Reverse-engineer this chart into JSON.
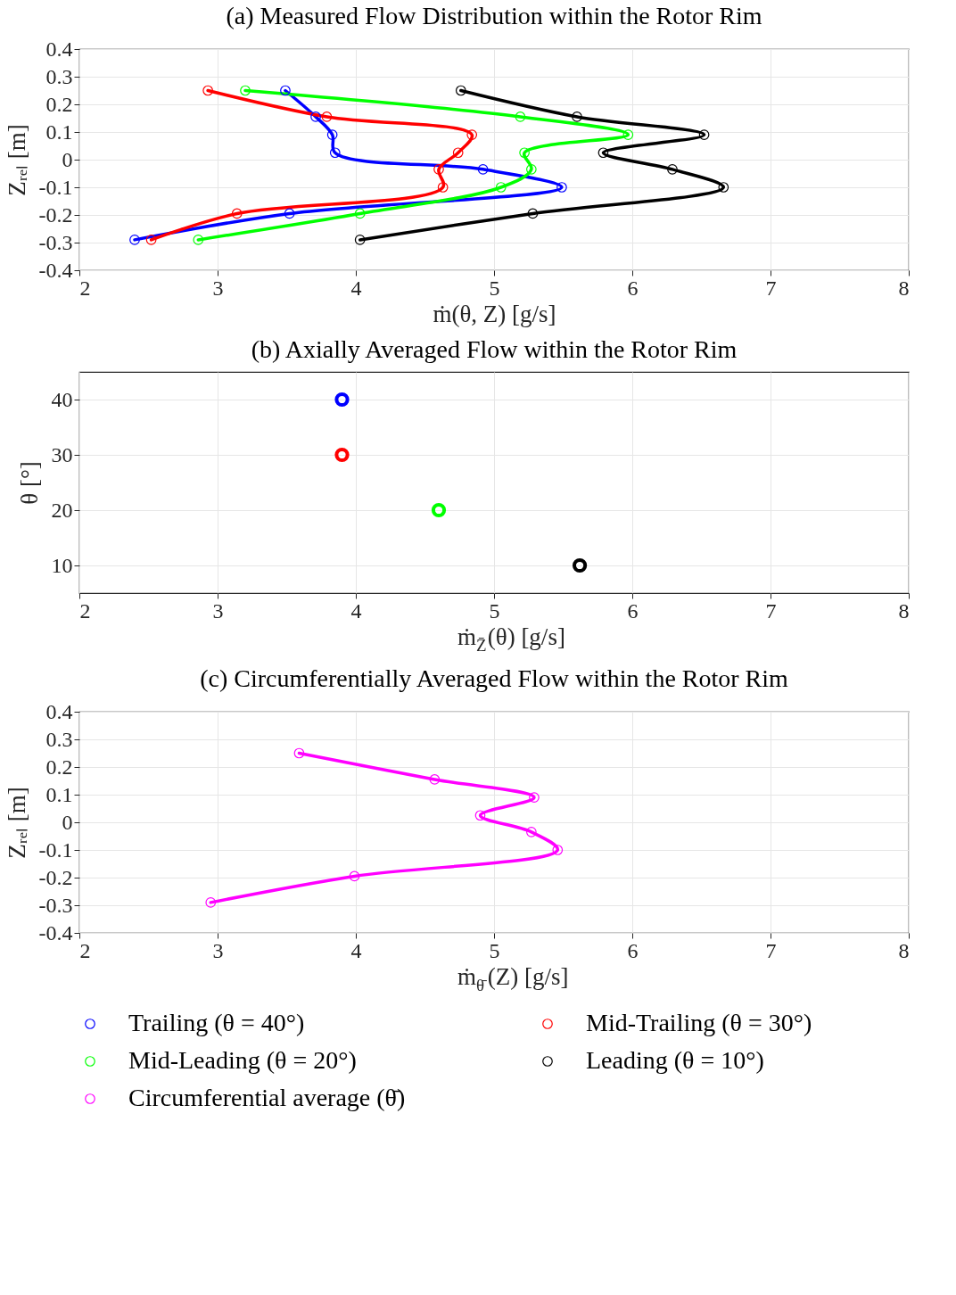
{
  "chart_data": [
    {
      "type": "line",
      "title": "(a) Measured Flow Distribution within the Rotor Rim",
      "xlabel": "ṁ(θ, Z) [g/s]",
      "ylabel": "Zᵣₑₗ [m]",
      "xlim": [
        2,
        8
      ],
      "xticks": [
        2,
        3,
        4,
        5,
        6,
        7,
        8
      ],
      "ylim": [
        -0.4,
        0.4
      ],
      "yticks": [
        -0.4,
        -0.3,
        -0.2,
        -0.1,
        0,
        0.1,
        0.2,
        0.3,
        0.4
      ],
      "grid": true,
      "marker": "circle",
      "legend": "bottom",
      "series": [
        {
          "name": "Trailing (θ = 40°)",
          "color": "#0000ff",
          "x": [
            3.49,
            3.71,
            3.83,
            3.85,
            4.92,
            5.49,
            3.52,
            2.4
          ],
          "values": [
            0.25,
            0.155,
            0.09,
            0.025,
            -0.035,
            -0.1,
            -0.195,
            -0.29
          ]
        },
        {
          "name": "Mid-Trailing (θ = 30°)",
          "color": "#ff0000",
          "x": [
            2.93,
            3.79,
            4.84,
            4.74,
            4.6,
            4.63,
            3.14,
            2.52
          ],
          "values": [
            0.25,
            0.155,
            0.09,
            0.025,
            -0.035,
            -0.1,
            -0.195,
            -0.29
          ]
        },
        {
          "name": "Mid-Leading (θ = 20°)",
          "color": "#00ff00",
          "x": [
            3.2,
            5.19,
            5.97,
            5.22,
            5.27,
            5.05,
            4.03,
            2.86
          ],
          "values": [
            0.25,
            0.155,
            0.09,
            0.025,
            -0.035,
            -0.1,
            -0.195,
            -0.29
          ]
        },
        {
          "name": "Leading (θ = 10°)",
          "color": "#000000",
          "x": [
            4.76,
            5.6,
            6.52,
            5.79,
            6.29,
            6.66,
            5.28,
            4.03
          ],
          "values": [
            0.25,
            0.155,
            0.09,
            0.025,
            -0.035,
            -0.1,
            -0.195,
            -0.29
          ]
        }
      ]
    },
    {
      "type": "scatter",
      "title": "(b) Axially Averaged Flow within the Rotor Rim",
      "xlabel": "ṁ$_{Z̄}$(θ) [g/s]",
      "ylabel": "θ [°]",
      "xlim": [
        2,
        8
      ],
      "xticks": [
        2,
        3,
        4,
        5,
        6,
        7,
        8
      ],
      "ylim": [
        5,
        45
      ],
      "yticks": [
        10,
        20,
        30,
        40
      ],
      "grid": true,
      "marker": "circle",
      "series": [
        {
          "color": "#0000ff",
          "x": [
            3.9
          ],
          "values": [
            40
          ]
        },
        {
          "color": "#ff0000",
          "x": [
            3.9
          ],
          "values": [
            30
          ]
        },
        {
          "color": "#00ff00",
          "x": [
            4.6
          ],
          "values": [
            20
          ]
        },
        {
          "color": "#000000",
          "x": [
            5.62
          ],
          "values": [
            10
          ]
        }
      ]
    },
    {
      "type": "line",
      "title": "(c) Circumferentially Averaged Flow within the Rotor Rim",
      "xlabel": "ṁ$_{θ̄}$(Z) [g/s]",
      "ylabel": "Zᵣₑₗ [m]",
      "xlim": [
        2,
        8
      ],
      "xticks": [
        2,
        3,
        4,
        5,
        6,
        7,
        8
      ],
      "ylim": [
        -0.4,
        0.4
      ],
      "yticks": [
        -0.4,
        -0.3,
        -0.2,
        -0.1,
        0,
        0.1,
        0.2,
        0.3,
        0.4
      ],
      "grid": true,
      "marker": "circle",
      "legend": "bottom",
      "series": [
        {
          "name": "Circumferential average (θ̄)",
          "color": "#ff00ff",
          "x": [
            3.59,
            4.57,
            5.29,
            4.9,
            5.27,
            5.46,
            3.99,
            2.95
          ],
          "values": [
            0.25,
            0.155,
            0.09,
            0.025,
            -0.035,
            -0.1,
            -0.195,
            -0.29
          ]
        }
      ]
    }
  ]
}
